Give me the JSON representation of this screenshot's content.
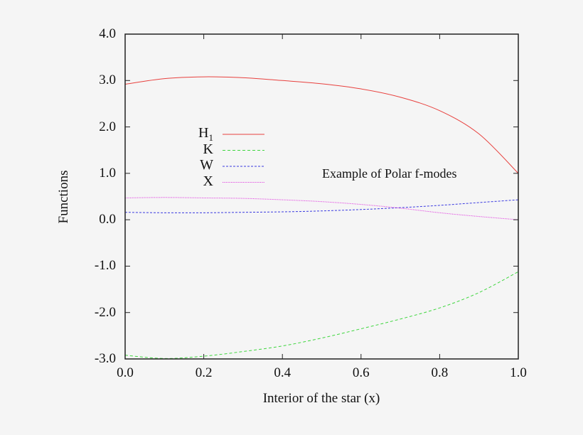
{
  "chart_data": {
    "type": "line",
    "title": "",
    "annotation": "Example of Polar f-modes",
    "xlabel": "Interior of the star (x)",
    "ylabel": "Functions",
    "xlim": [
      0.0,
      1.0
    ],
    "ylim": [
      -3.0,
      4.0
    ],
    "xticks": [
      "0.0",
      "0.2",
      "0.4",
      "0.6",
      "0.8",
      "1.0"
    ],
    "yticks": [
      "4.0",
      "3.0",
      "2.0",
      "1.0",
      "0.0",
      "-1.0",
      "-2.0",
      "-3.0"
    ],
    "grid": false,
    "legend_position": "upper-left inside",
    "x": [
      0.0,
      0.1,
      0.2,
      0.3,
      0.4,
      0.5,
      0.6,
      0.7,
      0.8,
      0.9,
      1.0
    ],
    "series": [
      {
        "name": "H1",
        "label_main": "H",
        "label_sub": "1",
        "color": "#e8413e",
        "style": "solid",
        "values": [
          2.92,
          3.04,
          3.08,
          3.06,
          3.0,
          2.93,
          2.82,
          2.64,
          2.35,
          1.85,
          1.0
        ]
      },
      {
        "name": "K",
        "label_main": "K",
        "label_sub": "",
        "color": "#3fd63f",
        "style": "dashed",
        "values": [
          -2.92,
          -2.99,
          -2.94,
          -2.84,
          -2.72,
          -2.55,
          -2.35,
          -2.14,
          -1.9,
          -1.57,
          -1.12
        ]
      },
      {
        "name": "W",
        "label_main": "W",
        "label_sub": "",
        "color": "#3a3ae0",
        "style": "dashdot",
        "values": [
          0.16,
          0.15,
          0.15,
          0.16,
          0.17,
          0.19,
          0.22,
          0.26,
          0.31,
          0.37,
          0.43
        ]
      },
      {
        "name": "X",
        "label_main": "X",
        "label_sub": "",
        "color": "#e040e0",
        "style": "dotted",
        "values": [
          0.47,
          0.48,
          0.47,
          0.46,
          0.43,
          0.39,
          0.33,
          0.25,
          0.15,
          0.07,
          0.0
        ]
      }
    ]
  }
}
